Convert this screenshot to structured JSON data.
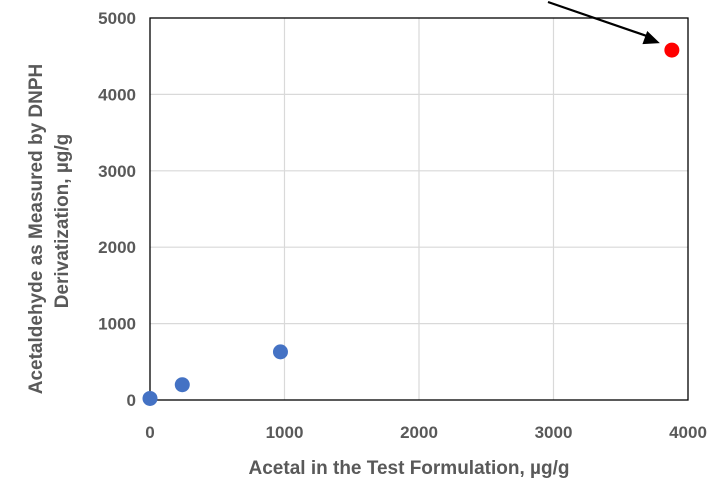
{
  "chart_data": {
    "type": "scatter",
    "title": "",
    "xlabel": "Acetal in the Test Formulation, µg/g",
    "ylabel_lines": [
      "Acetaldehyde as Measured by DNPH",
      "Derivatization, µg/g"
    ],
    "xlim": [
      0,
      4000
    ],
    "ylim": [
      0,
      5000
    ],
    "xticks": [
      0,
      1000,
      2000,
      3000,
      4000
    ],
    "yticks": [
      0,
      1000,
      2000,
      3000,
      4000,
      5000
    ],
    "x_tick_labels": [
      "0",
      "1000",
      "2000",
      "3000",
      "4000"
    ],
    "y_tick_labels": [
      "0",
      "1000",
      "2000",
      "3000",
      "4000",
      "5000"
    ],
    "grid": true,
    "legend": "none",
    "series": [
      {
        "color": "#4472C4",
        "points": [
          {
            "x": 0,
            "y": 20
          },
          {
            "x": 240,
            "y": 200
          },
          {
            "x": 970,
            "y": 630
          }
        ]
      },
      {
        "color": "#FF0000",
        "points": [
          {
            "x": 3880,
            "y": 4580
          }
        ]
      }
    ],
    "annotation": {
      "type": "arrow",
      "pointing_to": {
        "x": 3880,
        "y": 4580
      },
      "color": "#000000"
    }
  }
}
